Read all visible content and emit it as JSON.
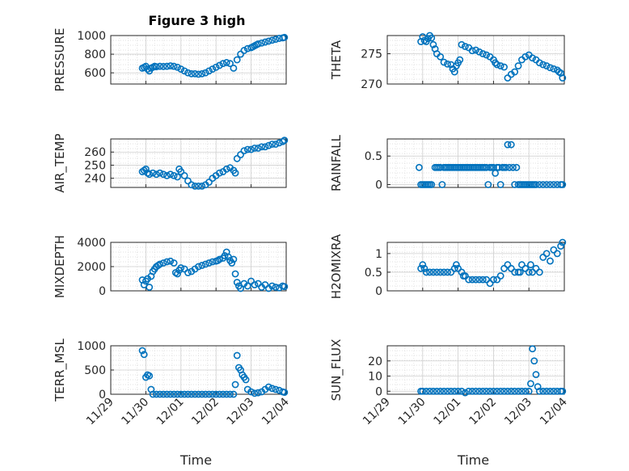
{
  "figure": {
    "title": "Figure 3 high",
    "marker_color": "#0072BD"
  },
  "chart_data": [
    {
      "id": "pressure",
      "type": "scatter",
      "title": "Figure 3 high",
      "ylabel": "PRESSURE",
      "xlabel": "",
      "xlim": [
        0,
        5
      ],
      "ylim": [
        480,
        1000
      ],
      "yticks": [
        600,
        800,
        1000
      ],
      "xticklabels": [
        "11/29",
        "11/30",
        "12/01",
        "12/02",
        "12/03",
        "12/04"
      ],
      "show_xticklabels": false,
      "series": [
        {
          "x": [
            0.9,
            0.95,
            1.0,
            1.05,
            1.1,
            1.15,
            1.2,
            1.25,
            1.3,
            1.4,
            1.5,
            1.6,
            1.7,
            1.8,
            1.9,
            2.0,
            2.1,
            2.2,
            2.3,
            2.4,
            2.5,
            2.6,
            2.7,
            2.8,
            2.9,
            3.0,
            3.1,
            3.2,
            3.3,
            3.4,
            3.5,
            3.6,
            3.7,
            3.8,
            3.9,
            4.0,
            4.05,
            4.1,
            4.15,
            4.2,
            4.3,
            4.4,
            4.5,
            4.6,
            4.7,
            4.8,
            4.9,
            4.95
          ],
          "y": [
            650,
            660,
            670,
            640,
            620,
            650,
            660,
            670,
            665,
            670,
            668,
            670,
            675,
            670,
            660,
            640,
            620,
            600,
            590,
            590,
            585,
            590,
            600,
            620,
            640,
            660,
            680,
            700,
            710,
            700,
            650,
            740,
            800,
            840,
            860,
            870,
            880,
            890,
            900,
            910,
            920,
            930,
            940,
            950,
            960,
            970,
            975,
            980
          ]
        }
      ]
    },
    {
      "id": "theta",
      "type": "scatter",
      "ylabel": "THETA",
      "xlabel": "",
      "xlim": [
        0,
        5
      ],
      "ylim": [
        270,
        278
      ],
      "yticks": [
        270,
        275
      ],
      "xticklabels": [
        "11/29",
        "11/30",
        "12/01",
        "12/02",
        "12/03",
        "12/04"
      ],
      "show_xticklabels": false,
      "series": [
        {
          "x": [
            0.95,
            1.0,
            1.05,
            1.1,
            1.15,
            1.2,
            1.25,
            1.3,
            1.35,
            1.4,
            1.5,
            1.6,
            1.7,
            1.8,
            1.85,
            1.9,
            1.95,
            2.0,
            2.05,
            2.1,
            2.2,
            2.3,
            2.4,
            2.5,
            2.6,
            2.7,
            2.8,
            2.9,
            3.0,
            3.05,
            3.1,
            3.2,
            3.3,
            3.4,
            3.5,
            3.6,
            3.7,
            3.8,
            3.9,
            4.0,
            4.1,
            4.2,
            4.3,
            4.4,
            4.5,
            4.6,
            4.7,
            4.8,
            4.85,
            4.9,
            4.95
          ],
          "y": [
            277,
            277.8,
            277.2,
            277,
            277.5,
            278,
            277.6,
            276.5,
            275.8,
            275,
            274.5,
            273.6,
            273.3,
            273.2,
            272.5,
            272,
            273,
            273.5,
            274,
            276.5,
            276.2,
            276,
            275.5,
            275.6,
            275.3,
            275,
            274.8,
            274.5,
            274,
            273.5,
            273.2,
            273,
            272.8,
            271,
            271.6,
            272,
            273,
            274,
            274.5,
            274.8,
            274.3,
            274,
            273.5,
            273.2,
            273,
            272.7,
            272.5,
            272.3,
            272,
            271.8,
            271
          ]
        }
      ]
    },
    {
      "id": "air_temp",
      "type": "scatter",
      "ylabel": "AIR_TEMP",
      "xlabel": "",
      "xlim": [
        0,
        5
      ],
      "ylim": [
        233,
        270
      ],
      "yticks": [
        240,
        250,
        260
      ],
      "xticklabels": [
        "11/29",
        "11/30",
        "12/01",
        "12/02",
        "12/03",
        "12/04"
      ],
      "show_xticklabels": false,
      "series": [
        {
          "x": [
            0.9,
            0.95,
            1.0,
            1.05,
            1.1,
            1.2,
            1.3,
            1.4,
            1.5,
            1.6,
            1.7,
            1.8,
            1.9,
            1.95,
            2.0,
            2.1,
            2.2,
            2.3,
            2.4,
            2.5,
            2.6,
            2.7,
            2.8,
            2.9,
            3.0,
            3.1,
            3.2,
            3.3,
            3.4,
            3.5,
            3.55,
            3.6,
            3.7,
            3.8,
            3.9,
            4.0,
            4.1,
            4.2,
            4.3,
            4.4,
            4.5,
            4.6,
            4.7,
            4.8,
            4.9,
            4.95
          ],
          "y": [
            245,
            246,
            247,
            244,
            243,
            244,
            243,
            244,
            243,
            242,
            243,
            242,
            241,
            247,
            245,
            242,
            238,
            235,
            234,
            234,
            234,
            235,
            237,
            240,
            242,
            244,
            245,
            247,
            248,
            246,
            244,
            255,
            258,
            261,
            262,
            262,
            263,
            263,
            264,
            264,
            265,
            266,
            266,
            267,
            268,
            269
          ]
        }
      ]
    },
    {
      "id": "rainfall",
      "type": "scatter",
      "ylabel": "RAINFALL",
      "xlabel": "",
      "xlim": [
        0,
        5
      ],
      "ylim": [
        -0.05,
        0.8
      ],
      "yticks": [
        0,
        0.5
      ],
      "xticklabels": [
        "11/29",
        "11/30",
        "12/01",
        "12/02",
        "12/03",
        "12/04"
      ],
      "show_xticklabels": false,
      "series": [
        {
          "x": [
            0.9,
            0.95,
            1.0,
            1.05,
            1.1,
            1.15,
            1.2,
            1.25,
            1.35,
            1.4,
            1.45,
            1.5,
            1.55,
            1.6,
            1.65,
            1.7,
            1.75,
            1.8,
            1.85,
            1.9,
            1.95,
            2.0,
            2.05,
            2.1,
            2.15,
            2.2,
            2.25,
            2.3,
            2.35,
            2.4,
            2.45,
            2.5,
            2.55,
            2.6,
            2.65,
            2.7,
            2.75,
            2.8,
            2.85,
            2.9,
            2.95,
            3.0,
            3.05,
            3.1,
            3.15,
            3.2,
            3.25,
            3.3,
            3.35,
            3.4,
            3.45,
            3.5,
            3.55,
            3.6,
            3.65,
            3.7,
            3.75,
            3.8,
            3.85,
            3.9,
            3.95,
            4.0,
            4.05,
            4.1,
            4.15,
            4.2,
            4.3,
            4.4,
            4.5,
            4.6,
            4.7,
            4.8,
            4.9,
            4.95
          ],
          "y": [
            0.3,
            0,
            0,
            0,
            0,
            0,
            0,
            0,
            0.3,
            0.3,
            0.3,
            0.3,
            0,
            0.3,
            0.3,
            0.3,
            0.3,
            0.3,
            0.3,
            0.3,
            0.3,
            0.3,
            0.3,
            0.3,
            0.3,
            0.3,
            0.3,
            0.3,
            0.3,
            0.3,
            0.3,
            0.3,
            0.3,
            0.3,
            0.3,
            0.3,
            0.3,
            0.3,
            0,
            0.3,
            0.3,
            0.3,
            0.2,
            0.3,
            0.3,
            0,
            0.3,
            0.3,
            0.3,
            0.7,
            0.3,
            0.7,
            0.3,
            0,
            0.3,
            0,
            0,
            0,
            0,
            0,
            0,
            0,
            0,
            0,
            0,
            0,
            0,
            0,
            0,
            0,
            0,
            0,
            0,
            0
          ]
        }
      ]
    },
    {
      "id": "mixdepth",
      "type": "scatter",
      "ylabel": "MIXDEPTH",
      "xlabel": "",
      "xlim": [
        0,
        5
      ],
      "ylim": [
        0,
        4000
      ],
      "yticks": [
        0,
        2000,
        4000
      ],
      "xticklabels": [
        "11/29",
        "11/30",
        "12/01",
        "12/02",
        "12/03",
        "12/04"
      ],
      "show_xticklabels": false,
      "series": [
        {
          "x": [
            0.9,
            0.95,
            1.0,
            1.05,
            1.1,
            1.15,
            1.2,
            1.25,
            1.3,
            1.35,
            1.4,
            1.5,
            1.6,
            1.7,
            1.8,
            1.85,
            1.9,
            1.95,
            2.0,
            2.1,
            2.2,
            2.3,
            2.4,
            2.5,
            2.6,
            2.7,
            2.8,
            2.9,
            3.0,
            3.05,
            3.1,
            3.2,
            3.25,
            3.3,
            3.35,
            3.4,
            3.45,
            3.5,
            3.55,
            3.6,
            3.65,
            3.7,
            3.8,
            3.9,
            4.0,
            4.1,
            4.2,
            4.3,
            4.4,
            4.5,
            4.6,
            4.7,
            4.8,
            4.9,
            4.95
          ],
          "y": [
            900,
            500,
            800,
            1000,
            300,
            1200,
            1600,
            1800,
            2000,
            2100,
            2200,
            2300,
            2400,
            2450,
            2300,
            1500,
            1400,
            1700,
            1900,
            1800,
            1500,
            1600,
            1800,
            2000,
            2100,
            2200,
            2300,
            2400,
            2450,
            2500,
            2600,
            2700,
            2900,
            3200,
            2800,
            2500,
            2300,
            2600,
            1400,
            700,
            400,
            200,
            600,
            400,
            800,
            500,
            600,
            300,
            500,
            200,
            400,
            300,
            250,
            400,
            350
          ]
        }
      ]
    },
    {
      "id": "h2omixra",
      "type": "scatter",
      "ylabel": "H2OMIXRA",
      "xlabel": "",
      "xlim": [
        0,
        5
      ],
      "ylim": [
        0,
        1.3
      ],
      "yticks": [
        0,
        0.5,
        1
      ],
      "xticklabels": [
        "11/29",
        "11/30",
        "12/01",
        "12/02",
        "12/03",
        "12/04"
      ],
      "show_xticklabels": false,
      "series": [
        {
          "x": [
            0.95,
            1.0,
            1.05,
            1.1,
            1.2,
            1.3,
            1.4,
            1.5,
            1.6,
            1.7,
            1.8,
            1.9,
            1.95,
            2.0,
            2.1,
            2.15,
            2.2,
            2.3,
            2.4,
            2.5,
            2.6,
            2.7,
            2.8,
            2.9,
            3.0,
            3.1,
            3.2,
            3.3,
            3.4,
            3.5,
            3.6,
            3.7,
            3.75,
            3.8,
            3.9,
            4.0,
            4.05,
            4.1,
            4.2,
            4.3,
            4.4,
            4.5,
            4.6,
            4.7,
            4.8,
            4.9,
            4.95
          ],
          "y": [
            0.6,
            0.7,
            0.6,
            0.5,
            0.5,
            0.5,
            0.5,
            0.5,
            0.5,
            0.5,
            0.5,
            0.6,
            0.7,
            0.6,
            0.5,
            0.4,
            0.4,
            0.3,
            0.3,
            0.3,
            0.3,
            0.3,
            0.3,
            0.2,
            0.3,
            0.3,
            0.4,
            0.6,
            0.7,
            0.6,
            0.5,
            0.5,
            0.5,
            0.7,
            0.6,
            0.5,
            0.7,
            0.5,
            0.6,
            0.5,
            0.9,
            1.0,
            0.8,
            1.1,
            1.0,
            1.2,
            1.3
          ]
        }
      ]
    },
    {
      "id": "terr_msl",
      "type": "scatter",
      "ylabel": "TERR_MSL",
      "xlabel": "Time",
      "xlim": [
        0,
        5
      ],
      "ylim": [
        0,
        1000
      ],
      "yticks": [
        0,
        500,
        1000
      ],
      "xticklabels": [
        "11/29",
        "11/30",
        "12/01",
        "12/02",
        "12/03",
        "12/04"
      ],
      "show_xticklabels": true,
      "series": [
        {
          "x": [
            0.9,
            0.95,
            1.0,
            1.05,
            1.1,
            1.15,
            1.2,
            1.3,
            1.4,
            1.5,
            1.6,
            1.7,
            1.8,
            1.9,
            2.0,
            2.1,
            2.2,
            2.3,
            2.4,
            2.5,
            2.6,
            2.7,
            2.8,
            2.9,
            3.0,
            3.1,
            3.2,
            3.3,
            3.4,
            3.5,
            3.55,
            3.6,
            3.65,
            3.7,
            3.75,
            3.8,
            3.85,
            3.9,
            4.0,
            4.1,
            4.2,
            4.3,
            4.4,
            4.5,
            4.6,
            4.7,
            4.8,
            4.9,
            4.95
          ],
          "y": [
            900,
            820,
            350,
            400,
            380,
            100,
            0,
            0,
            0,
            0,
            0,
            0,
            0,
            0,
            0,
            0,
            0,
            0,
            0,
            0,
            0,
            0,
            0,
            0,
            0,
            0,
            0,
            0,
            0,
            0,
            200,
            800,
            550,
            500,
            400,
            350,
            300,
            100,
            50,
            20,
            30,
            50,
            100,
            150,
            120,
            100,
            80,
            50,
            40
          ]
        }
      ]
    },
    {
      "id": "sun_flux",
      "type": "scatter",
      "ylabel": "SUN_FLUX",
      "xlabel": "Time",
      "xlim": [
        0,
        5
      ],
      "ylim": [
        -2,
        30
      ],
      "yticks": [
        0,
        10,
        20
      ],
      "xticklabels": [
        "11/29",
        "11/30",
        "12/01",
        "12/02",
        "12/03",
        "12/04"
      ],
      "show_xticklabels": true,
      "series": [
        {
          "x": [
            0.95,
            1.0,
            1.1,
            1.2,
            1.3,
            1.4,
            1.5,
            1.6,
            1.7,
            1.8,
            1.9,
            2.0,
            2.1,
            2.2,
            2.3,
            2.4,
            2.5,
            2.6,
            2.7,
            2.8,
            2.9,
            3.0,
            3.1,
            3.2,
            3.3,
            3.4,
            3.5,
            3.6,
            3.7,
            3.8,
            3.9,
            4.0,
            4.05,
            4.1,
            4.15,
            4.2,
            4.25,
            4.3,
            4.4,
            4.5,
            4.6,
            4.7,
            4.8,
            4.9,
            4.95
          ],
          "y": [
            0,
            0,
            0,
            0,
            0,
            0,
            0,
            0,
            0,
            0,
            0,
            0,
            0,
            -1,
            0,
            0,
            0,
            0,
            0,
            0,
            0,
            0,
            0,
            0,
            0,
            0,
            0,
            0,
            0,
            0,
            0,
            0,
            5,
            28,
            20,
            11,
            3,
            0,
            0,
            0,
            0,
            0,
            0,
            0,
            0
          ]
        }
      ]
    }
  ]
}
